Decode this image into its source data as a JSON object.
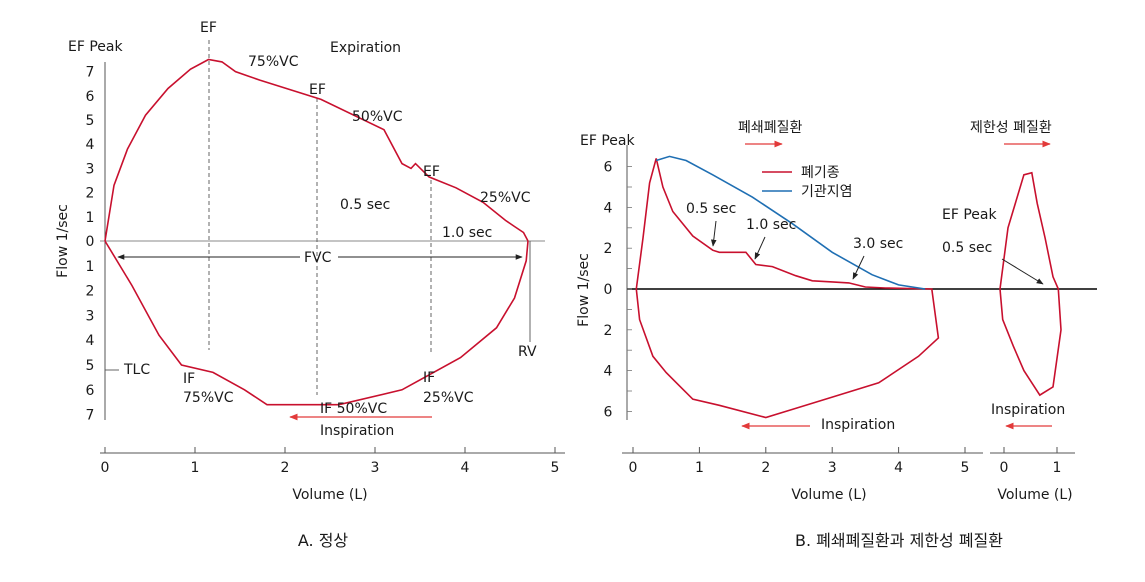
{
  "chart_data": [
    {
      "panel": "A",
      "type": "line",
      "caption": "A. 정상",
      "ylabel": "Flow 1/sec",
      "xlabel": "Volume (L)",
      "x_ticks": [
        "0",
        "1",
        "2",
        "3",
        "4",
        "5"
      ],
      "y_ticks_expiration": [
        "0",
        "1",
        "2",
        "3",
        "4",
        "5",
        "6",
        "7"
      ],
      "y_ticks_inspiration": [
        "1",
        "2",
        "3",
        "4",
        "5",
        "6",
        "7"
      ],
      "y_top_label": "EF Peak",
      "xlim": [
        0,
        5
      ],
      "ylim": [
        -7,
        7
      ],
      "grid": false,
      "series": [
        {
          "color": "#c8102e",
          "expiration": [
            {
              "x": 0.0,
              "y": 0.0
            },
            {
              "x": 0.1,
              "y": 2.3
            },
            {
              "x": 0.25,
              "y": 3.8
            },
            {
              "x": 0.45,
              "y": 5.2
            },
            {
              "x": 0.7,
              "y": 6.3
            },
            {
              "x": 0.95,
              "y": 7.1
            },
            {
              "x": 1.15,
              "y": 7.5
            },
            {
              "x": 1.3,
              "y": 7.4
            },
            {
              "x": 1.45,
              "y": 7.0
            },
            {
              "x": 1.6,
              "y": 6.8
            },
            {
              "x": 1.72,
              "y": 6.65
            },
            {
              "x": 2.4,
              "y": 5.85
            },
            {
              "x": 3.1,
              "y": 4.6
            },
            {
              "x": 3.3,
              "y": 3.2
            },
            {
              "x": 3.4,
              "y": 3.0
            },
            {
              "x": 3.45,
              "y": 3.2
            },
            {
              "x": 3.6,
              "y": 2.65
            },
            {
              "x": 3.9,
              "y": 2.2
            },
            {
              "x": 4.2,
              "y": 1.6
            },
            {
              "x": 4.45,
              "y": 0.85
            },
            {
              "x": 4.55,
              "y": 0.6
            },
            {
              "x": 4.65,
              "y": 0.35
            },
            {
              "x": 4.7,
              "y": 0.0
            }
          ],
          "inspiration": [
            {
              "x": 0.0,
              "y": 0.0
            },
            {
              "x": 0.3,
              "y": -1.8
            },
            {
              "x": 0.6,
              "y": -3.8
            },
            {
              "x": 0.85,
              "y": -5.0
            },
            {
              "x": 1.2,
              "y": -5.3
            },
            {
              "x": 1.55,
              "y": -6.0
            },
            {
              "x": 1.8,
              "y": -6.6
            },
            {
              "x": 2.6,
              "y": -6.6
            },
            {
              "x": 3.3,
              "y": -6.0
            },
            {
              "x": 3.95,
              "y": -4.7
            },
            {
              "x": 4.35,
              "y": -3.5
            },
            {
              "x": 4.55,
              "y": -2.3
            },
            {
              "x": 4.68,
              "y": -0.8
            },
            {
              "x": 4.7,
              "y": 0.0
            }
          ]
        }
      ],
      "annotations": [
        "EF",
        "75%VC",
        "Expiration",
        "EF",
        "50%VC",
        "EF",
        "25%VC",
        "0.5 sec",
        "1.0 sec",
        "FVC",
        "TLC",
        "RV",
        "IF",
        "75%VC",
        "IF 50%VC",
        "Inspiration",
        "IF",
        "25%VC"
      ]
    },
    {
      "panel": "B",
      "type": "line",
      "caption": "B. 폐쇄폐질환과 제한성 폐질환",
      "ylabel": "Flow 1/sec",
      "xlabel": "Volume (L)",
      "x_ticks": [
        "0",
        "1",
        "2",
        "3",
        "4",
        "5"
      ],
      "y_ticks_expiration": [
        "0",
        "2",
        "4",
        "6"
      ],
      "y_ticks_inspiration": [
        "2",
        "4",
        "6"
      ],
      "y_top_label": "EF Peak",
      "xlim": [
        0,
        5
      ],
      "ylim": [
        -6,
        6
      ],
      "grid": false,
      "legend": "top-center",
      "series": [
        {
          "name": "폐기종",
          "color": "#c8102e",
          "points": [
            {
              "x": 0.05,
              "y": 0.0
            },
            {
              "x": 0.15,
              "y": 2.5
            },
            {
              "x": 0.25,
              "y": 5.2
            },
            {
              "x": 0.35,
              "y": 6.4
            },
            {
              "x": 0.45,
              "y": 5.0
            },
            {
              "x": 0.6,
              "y": 3.8
            },
            {
              "x": 0.9,
              "y": 2.6
            },
            {
              "x": 1.2,
              "y": 1.9
            },
            {
              "x": 1.3,
              "y": 1.8
            },
            {
              "x": 1.7,
              "y": 1.8
            },
            {
              "x": 1.85,
              "y": 1.2
            },
            {
              "x": 2.1,
              "y": 1.1
            },
            {
              "x": 2.45,
              "y": 0.65
            },
            {
              "x": 2.7,
              "y": 0.4
            },
            {
              "x": 3.0,
              "y": 0.35
            },
            {
              "x": 3.25,
              "y": 0.3
            },
            {
              "x": 3.5,
              "y": 0.1
            },
            {
              "x": 3.8,
              "y": 0.05
            },
            {
              "x": 4.5,
              "y": 0.0
            },
            {
              "x": 4.6,
              "y": -2.4
            },
            {
              "x": 4.3,
              "y": -3.3
            },
            {
              "x": 3.7,
              "y": -4.6
            },
            {
              "x": 3.0,
              "y": -5.3
            },
            {
              "x": 2.4,
              "y": -5.9
            },
            {
              "x": 2.0,
              "y": -6.3
            },
            {
              "x": 1.3,
              "y": -5.7
            },
            {
              "x": 0.9,
              "y": -5.4
            },
            {
              "x": 0.5,
              "y": -4.1
            },
            {
              "x": 0.3,
              "y": -3.3
            },
            {
              "x": 0.1,
              "y": -1.5
            },
            {
              "x": 0.05,
              "y": 0.0
            }
          ]
        },
        {
          "name": "기관지염",
          "color": "#1f6fb3",
          "points": [
            {
              "x": 0.35,
              "y": 6.3
            },
            {
              "x": 0.55,
              "y": 6.5
            },
            {
              "x": 0.8,
              "y": 6.3
            },
            {
              "x": 1.2,
              "y": 5.6
            },
            {
              "x": 1.8,
              "y": 4.5
            },
            {
              "x": 2.4,
              "y": 3.2
            },
            {
              "x": 3.0,
              "y": 1.8
            },
            {
              "x": 3.6,
              "y": 0.7
            },
            {
              "x": 4.0,
              "y": 0.2
            },
            {
              "x": 4.4,
              "y": 0.0
            }
          ]
        },
        {
          "color": "#c8102e",
          "points": [
            {
              "x": -0.15,
              "y": 0.0
            },
            {
              "x": 0.0,
              "y": 3.0
            },
            {
              "x": 0.3,
              "y": 5.6
            },
            {
              "x": 0.45,
              "y": 5.7
            },
            {
              "x": 0.55,
              "y": 4.2
            },
            {
              "x": 0.7,
              "y": 2.5
            },
            {
              "x": 0.85,
              "y": 0.6
            },
            {
              "x": 0.95,
              "y": 0.0
            },
            {
              "x": 1.0,
              "y": -2.0
            },
            {
              "x": 0.85,
              "y": -4.8
            },
            {
              "x": 0.6,
              "y": -5.2
            },
            {
              "x": 0.3,
              "y": -4.0
            },
            {
              "x": 0.1,
              "y": -2.8
            },
            {
              "x": -0.1,
              "y": -1.5
            },
            {
              "x": -0.15,
              "y": 0.0
            }
          ]
        }
      ],
      "annotations": [
        "폐쇄폐질환",
        "제한성 폐질환",
        "0.5 sec",
        "1.0 sec",
        "3.0 sec",
        "EF Peak",
        "0.5 sec",
        "Inspiration",
        "Inspiration"
      ],
      "restrictive_x_ticks": [
        "0",
        "1"
      ]
    }
  ]
}
